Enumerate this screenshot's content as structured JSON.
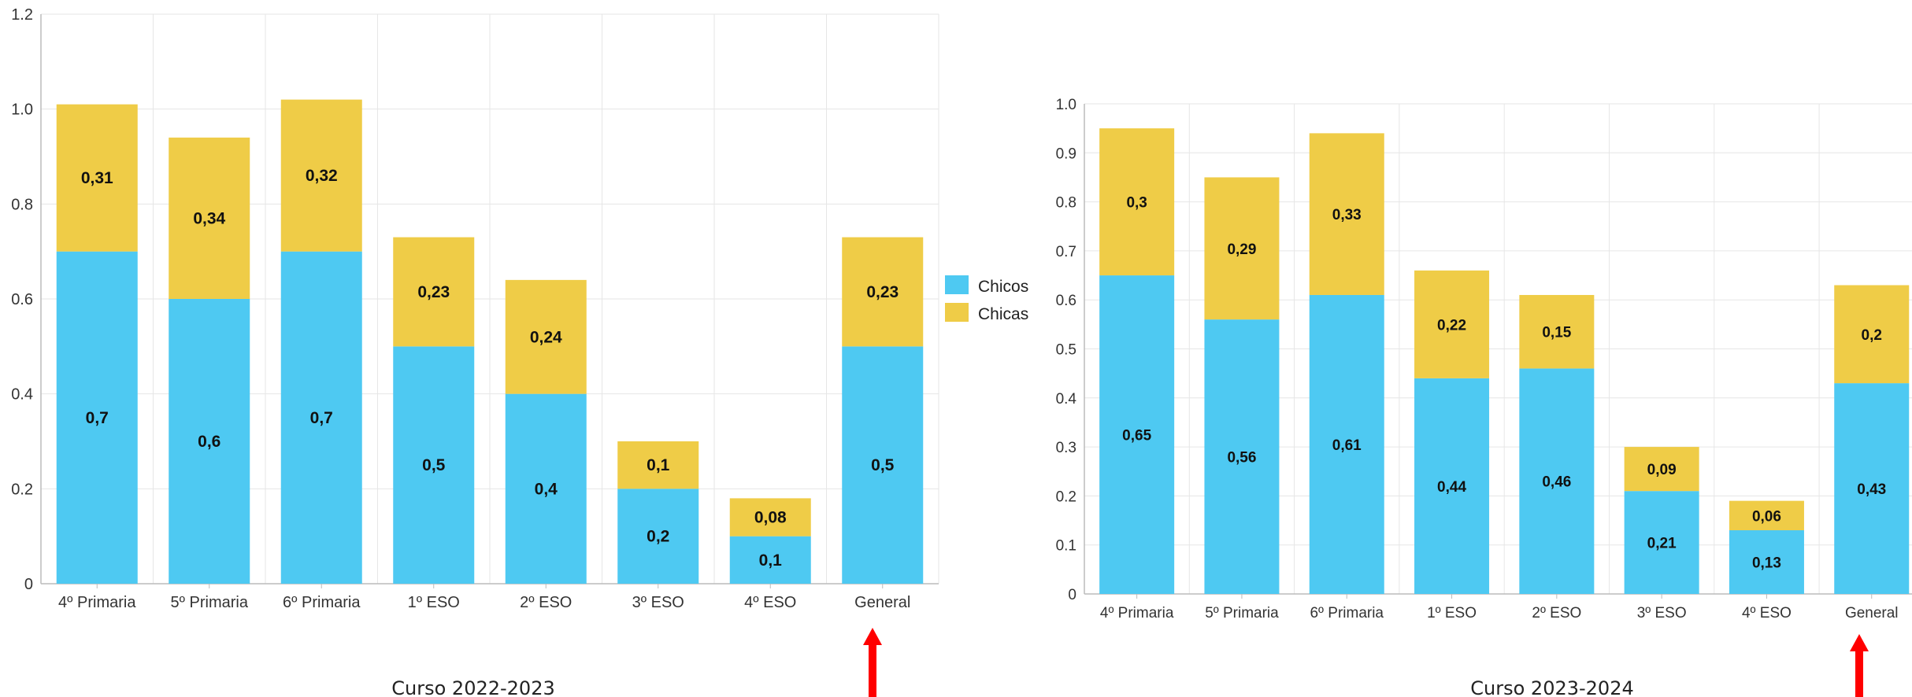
{
  "colors": {
    "chicos": "#4ec9f2",
    "chicas": "#efcc47",
    "arrow": "#ff0000",
    "grid": "#e6e6e6",
    "axis": "#bbbbbb"
  },
  "legend": {
    "items": [
      {
        "label": "Chicos",
        "color": "#4ec9f2"
      },
      {
        "label": "Chicas",
        "color": "#efcc47"
      }
    ],
    "placement": "right-of-left-chart"
  },
  "chart_data": [
    {
      "type": "bar",
      "stacked": true,
      "caption": "Curso 2022-2023",
      "categories": [
        "4º Primaria",
        "5º Primaria",
        "6º Primaria",
        "1º ESO",
        "2º ESO",
        "3º ESO",
        "4º ESO",
        "General"
      ],
      "series": [
        {
          "name": "Chicos",
          "values": [
            0.7,
            0.6,
            0.7,
            0.5,
            0.4,
            0.2,
            0.1,
            0.5
          ],
          "labels": [
            "0,7",
            "0,6",
            "0,7",
            "0,5",
            "0,4",
            "0,2",
            "0,1",
            "0,5"
          ]
        },
        {
          "name": "Chicas",
          "values": [
            0.31,
            0.34,
            0.32,
            0.23,
            0.24,
            0.1,
            0.08,
            0.23
          ],
          "labels": [
            "0,31",
            "0,34",
            "0,32",
            "0,23",
            "0,24",
            "0,1",
            "0,08",
            "0,23"
          ]
        }
      ],
      "ylim": [
        0,
        1.2
      ],
      "yticks": [
        0,
        0.2,
        0.4,
        0.6,
        0.8,
        1.0,
        1.2
      ],
      "ytick_labels": [
        "0",
        "0.2",
        "0.4",
        "0.6",
        "0.8",
        "1.0",
        "1.2"
      ],
      "grid": true,
      "highlight_category": "General"
    },
    {
      "type": "bar",
      "stacked": true,
      "caption": "Curso 2023-2024",
      "categories": [
        "4º Primaria",
        "5º Primaria",
        "6º Primaria",
        "1º ESO",
        "2º ESO",
        "3º ESO",
        "4º ESO",
        "General"
      ],
      "series": [
        {
          "name": "Chicos",
          "values": [
            0.65,
            0.56,
            0.61,
            0.44,
            0.46,
            0.21,
            0.13,
            0.43
          ],
          "labels": [
            "0,65",
            "0,56",
            "0,61",
            "0,44",
            "0,46",
            "0,21",
            "0,13",
            "0,43"
          ]
        },
        {
          "name": "Chicas",
          "values": [
            0.3,
            0.29,
            0.33,
            0.22,
            0.15,
            0.09,
            0.06,
            0.2
          ],
          "labels": [
            "0,3",
            "0,29",
            "0,33",
            "0,22",
            "0,15",
            "0,09",
            "0,06",
            "0,2"
          ]
        }
      ],
      "ylim": [
        0,
        1.0
      ],
      "yticks": [
        0,
        0.1,
        0.2,
        0.3,
        0.4,
        0.5,
        0.6,
        0.7,
        0.8,
        0.9,
        1.0
      ],
      "ytick_labels": [
        "0",
        "0.1",
        "0.2",
        "0.3",
        "0.4",
        "0.5",
        "0.6",
        "0.7",
        "0.8",
        "0.9",
        "1.0"
      ],
      "grid": true,
      "highlight_category": "General"
    }
  ]
}
